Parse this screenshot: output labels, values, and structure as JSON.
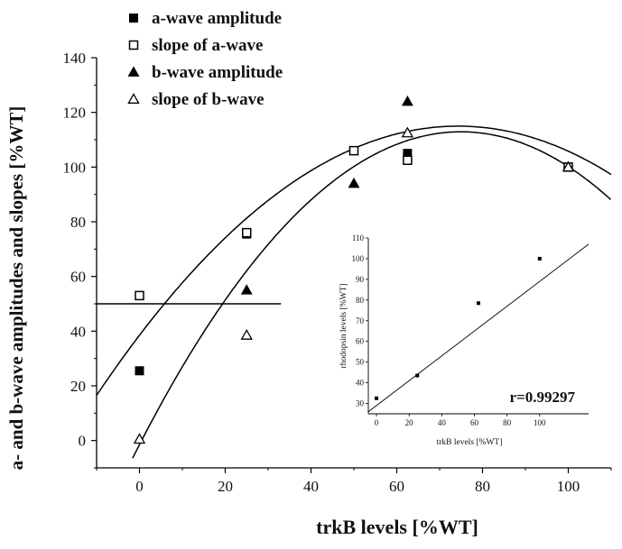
{
  "chart_data": [
    {
      "type": "scatter",
      "title": "",
      "xlabel": "trkB levels [%WT]",
      "ylabel": "a- and b-wave amplitudes and slopes [%WT]",
      "xlim": [
        -10,
        110
      ],
      "ylim": [
        -10,
        140
      ],
      "xticks": [
        "0",
        "20",
        "40",
        "60",
        "80",
        "100"
      ],
      "yticks": [
        "0",
        "20",
        "40",
        "60",
        "80",
        "100",
        "120",
        "140"
      ],
      "legend_position": "top-left",
      "grid": false,
      "series": [
        {
          "name": "a-wave amplitude",
          "marker": "filled-square",
          "points": [
            [
              0,
              25.5
            ],
            [
              25,
              75.5
            ],
            [
              50,
              106
            ],
            [
              62.5,
              105
            ],
            [
              100,
              100
            ]
          ]
        },
        {
          "name": "slope of a-wave",
          "marker": "open-square",
          "points": [
            [
              0,
              53
            ],
            [
              25,
              76
            ],
            [
              50,
              106
            ],
            [
              62.5,
              102.5
            ],
            [
              100,
              100
            ]
          ]
        },
        {
          "name": "b-wave amplitude",
          "marker": "filled-triangle",
          "points": [
            [
              25,
              55
            ],
            [
              50,
              94
            ],
            [
              62.5,
              124
            ],
            [
              100,
              100
            ]
          ]
        },
        {
          "name": "slope of b-wave",
          "marker": "open-triangle",
          "points": [
            [
              0,
              0.5
            ],
            [
              25,
              38.5
            ],
            [
              62.5,
              112.5
            ],
            [
              100,
              100
            ]
          ]
        }
      ],
      "fit_curves": [
        {
          "a": -0.01386,
          "b": 2.059,
          "c": 38.5,
          "x_range": [
            -10,
            110
          ]
        },
        {
          "a": -0.02034,
          "b": 3.0508,
          "c": -1.5,
          "x_range": [
            -1.6,
            110
          ]
        }
      ],
      "reference_line": {
        "y": 50,
        "x_range": [
          -10,
          33
        ]
      }
    },
    {
      "type": "scatter",
      "title": "",
      "xlabel": "trkB levels [%WT]",
      "ylabel": "rhodopsin levels [%WT]",
      "xlim": [
        -5,
        130
      ],
      "ylim": [
        25,
        110
      ],
      "xticks": [
        "0",
        "20",
        "40",
        "60",
        "80",
        "100"
      ],
      "yticks": [
        "30",
        "40",
        "50",
        "60",
        "70",
        "80",
        "90",
        "100",
        "110"
      ],
      "annotation": "r=0.99297",
      "points": [
        [
          0,
          32.5
        ],
        [
          25,
          43.5
        ],
        [
          62.5,
          78.5
        ],
        [
          100,
          100
        ]
      ],
      "fit_line": {
        "x_range": [
          -5,
          130
        ],
        "y_range": [
          26,
          107
        ]
      }
    }
  ]
}
